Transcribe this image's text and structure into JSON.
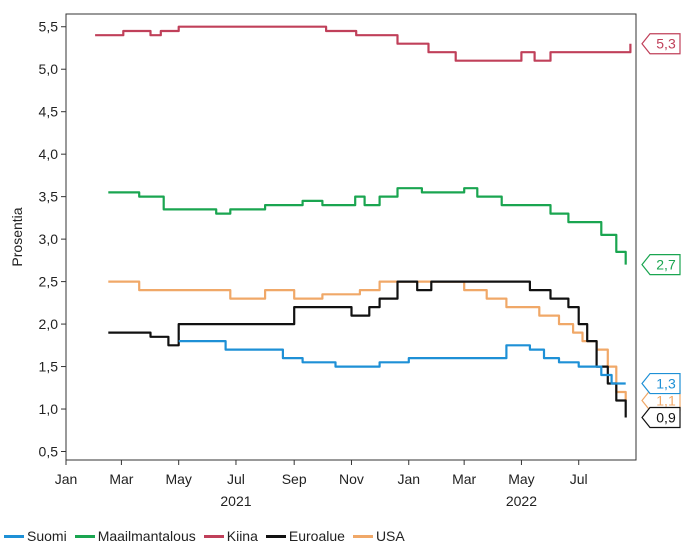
{
  "chart_data": {
    "type": "line",
    "ylabel": "Prosentia",
    "ylim": [
      0.4,
      5.65
    ],
    "yticks": [
      "0,5",
      "1,0",
      "1,5",
      "2,0",
      "2,5",
      "3,0",
      "3,5",
      "4,0",
      "4,5",
      "5,0",
      "5,5"
    ],
    "xlim": [
      "2021-01-01",
      "2022-08-31"
    ],
    "month_ticks": [
      {
        "date": "2021-01-01",
        "label": "Jan"
      },
      {
        "date": "2021-03-01",
        "label": "Mar"
      },
      {
        "date": "2021-05-01",
        "label": "May"
      },
      {
        "date": "2021-07-01",
        "label": "Jul"
      },
      {
        "date": "2021-09-01",
        "label": "Sep"
      },
      {
        "date": "2021-11-01",
        "label": "Nov"
      },
      {
        "date": "2022-01-01",
        "label": "Jan"
      },
      {
        "date": "2022-03-01",
        "label": "Mar"
      },
      {
        "date": "2022-05-01",
        "label": "May"
      },
      {
        "date": "2022-07-01",
        "label": "Jul"
      }
    ],
    "year_ticks": [
      {
        "date": "2021-07-01",
        "label": "2021"
      },
      {
        "date": "2022-05-01",
        "label": "2022"
      }
    ],
    "series": [
      {
        "name": "Kiina",
        "color": "#c0405a",
        "end_label": "5,3",
        "x": [
          "2021-02-01",
          "2021-03-01",
          "2021-03-03",
          "2021-03-25",
          "2021-04-01",
          "2021-04-12",
          "2021-05-01",
          "2021-10-01",
          "2021-10-05",
          "2021-10-25",
          "2021-11-06",
          "2021-12-01",
          "2021-12-20",
          "2022-01-15",
          "2022-01-22",
          "2022-02-15",
          "2022-02-20",
          "2022-04-25",
          "2022-05-01",
          "2022-05-12",
          "2022-05-15",
          "2022-06-01",
          "2022-08-15",
          "2022-08-25"
        ],
        "y": [
          5.4,
          5.4,
          5.45,
          5.45,
          5.4,
          5.45,
          5.5,
          5.5,
          5.45,
          5.45,
          5.4,
          5.4,
          5.3,
          5.3,
          5.2,
          5.2,
          5.1,
          5.1,
          5.2,
          5.2,
          5.1,
          5.2,
          5.2,
          5.3
        ]
      },
      {
        "name": "Maailmantalous",
        "color": "#1aa550",
        "end_label": "2,7",
        "x": [
          "2021-02-15",
          "2021-03-01",
          "2021-03-20",
          "2021-04-15",
          "2021-06-01",
          "2021-06-10",
          "2021-06-25",
          "2021-08-01",
          "2021-09-10",
          "2021-10-01",
          "2021-11-05",
          "2021-11-15",
          "2021-12-01",
          "2021-12-20",
          "2022-01-15",
          "2022-02-01",
          "2022-03-01",
          "2022-03-15",
          "2022-04-10",
          "2022-05-01",
          "2022-06-01",
          "2022-06-20",
          "2022-07-10",
          "2022-07-25",
          "2022-08-10",
          "2022-08-20"
        ],
        "y": [
          3.55,
          3.55,
          3.5,
          3.35,
          3.35,
          3.3,
          3.35,
          3.4,
          3.45,
          3.4,
          3.5,
          3.4,
          3.5,
          3.6,
          3.55,
          3.55,
          3.6,
          3.5,
          3.4,
          3.4,
          3.3,
          3.2,
          3.2,
          3.05,
          2.85,
          2.7
        ]
      },
      {
        "name": "USA",
        "color": "#f0a868",
        "end_label": "1,1",
        "x": [
          "2021-02-15",
          "2021-03-05",
          "2021-03-20",
          "2021-04-10",
          "2021-05-01",
          "2021-06-01",
          "2021-06-25",
          "2021-07-10",
          "2021-08-01",
          "2021-09-01",
          "2021-10-01",
          "2021-11-10",
          "2021-12-01",
          "2022-02-15",
          "2022-03-01",
          "2022-03-25",
          "2022-04-15",
          "2022-05-20",
          "2022-06-10",
          "2022-06-25",
          "2022-07-05",
          "2022-07-20",
          "2022-08-01",
          "2022-08-10",
          "2022-08-20"
        ],
        "y": [
          2.5,
          2.5,
          2.4,
          2.4,
          2.4,
          2.4,
          2.3,
          2.3,
          2.4,
          2.3,
          2.35,
          2.4,
          2.5,
          2.5,
          2.4,
          2.3,
          2.2,
          2.1,
          2.0,
          1.9,
          1.8,
          1.7,
          1.5,
          1.2,
          1.1
        ]
      },
      {
        "name": "Euroalue",
        "color": "#111111",
        "end_label": "0,9",
        "x": [
          "2021-02-15",
          "2021-03-15",
          "2021-04-01",
          "2021-04-20",
          "2021-05-01",
          "2021-06-01",
          "2021-08-01",
          "2021-09-01",
          "2021-10-01",
          "2021-11-01",
          "2021-11-20",
          "2021-12-01",
          "2021-12-20",
          "2022-01-10",
          "2022-01-25",
          "2022-04-20",
          "2022-05-10",
          "2022-06-01",
          "2022-06-20",
          "2022-07-01",
          "2022-07-10",
          "2022-07-20",
          "2022-08-01",
          "2022-08-10",
          "2022-08-20"
        ],
        "y": [
          1.9,
          1.9,
          1.85,
          1.75,
          2.0,
          2.0,
          2.0,
          2.2,
          2.2,
          2.1,
          2.2,
          2.3,
          2.5,
          2.4,
          2.5,
          2.5,
          2.4,
          2.3,
          2.2,
          2.0,
          1.8,
          1.5,
          1.3,
          1.1,
          0.9
        ]
      },
      {
        "name": "Suomi",
        "color": "#1e90d6",
        "end_label": "1,3",
        "x": [
          "2021-05-01",
          "2021-06-01",
          "2021-06-20",
          "2021-08-01",
          "2021-08-20",
          "2021-09-10",
          "2021-10-15",
          "2021-11-05",
          "2021-12-01",
          "2022-01-01",
          "2022-02-01",
          "2022-03-20",
          "2022-04-15",
          "2022-05-10",
          "2022-05-25",
          "2022-06-10",
          "2022-07-01",
          "2022-07-25",
          "2022-08-05",
          "2022-08-20"
        ],
        "y": [
          1.8,
          1.8,
          1.7,
          1.7,
          1.6,
          1.55,
          1.5,
          1.5,
          1.55,
          1.6,
          1.6,
          1.6,
          1.75,
          1.7,
          1.6,
          1.55,
          1.5,
          1.4,
          1.3,
          1.3
        ]
      }
    ]
  },
  "legend": {
    "items": [
      {
        "label": "Suomi",
        "color": "#1e90d6"
      },
      {
        "label": "Maailmantalous",
        "color": "#1aa550"
      },
      {
        "label": "Kiina",
        "color": "#c0405a"
      },
      {
        "label": "Euroalue",
        "color": "#111111"
      },
      {
        "label": "USA",
        "color": "#f0a868"
      }
    ]
  }
}
